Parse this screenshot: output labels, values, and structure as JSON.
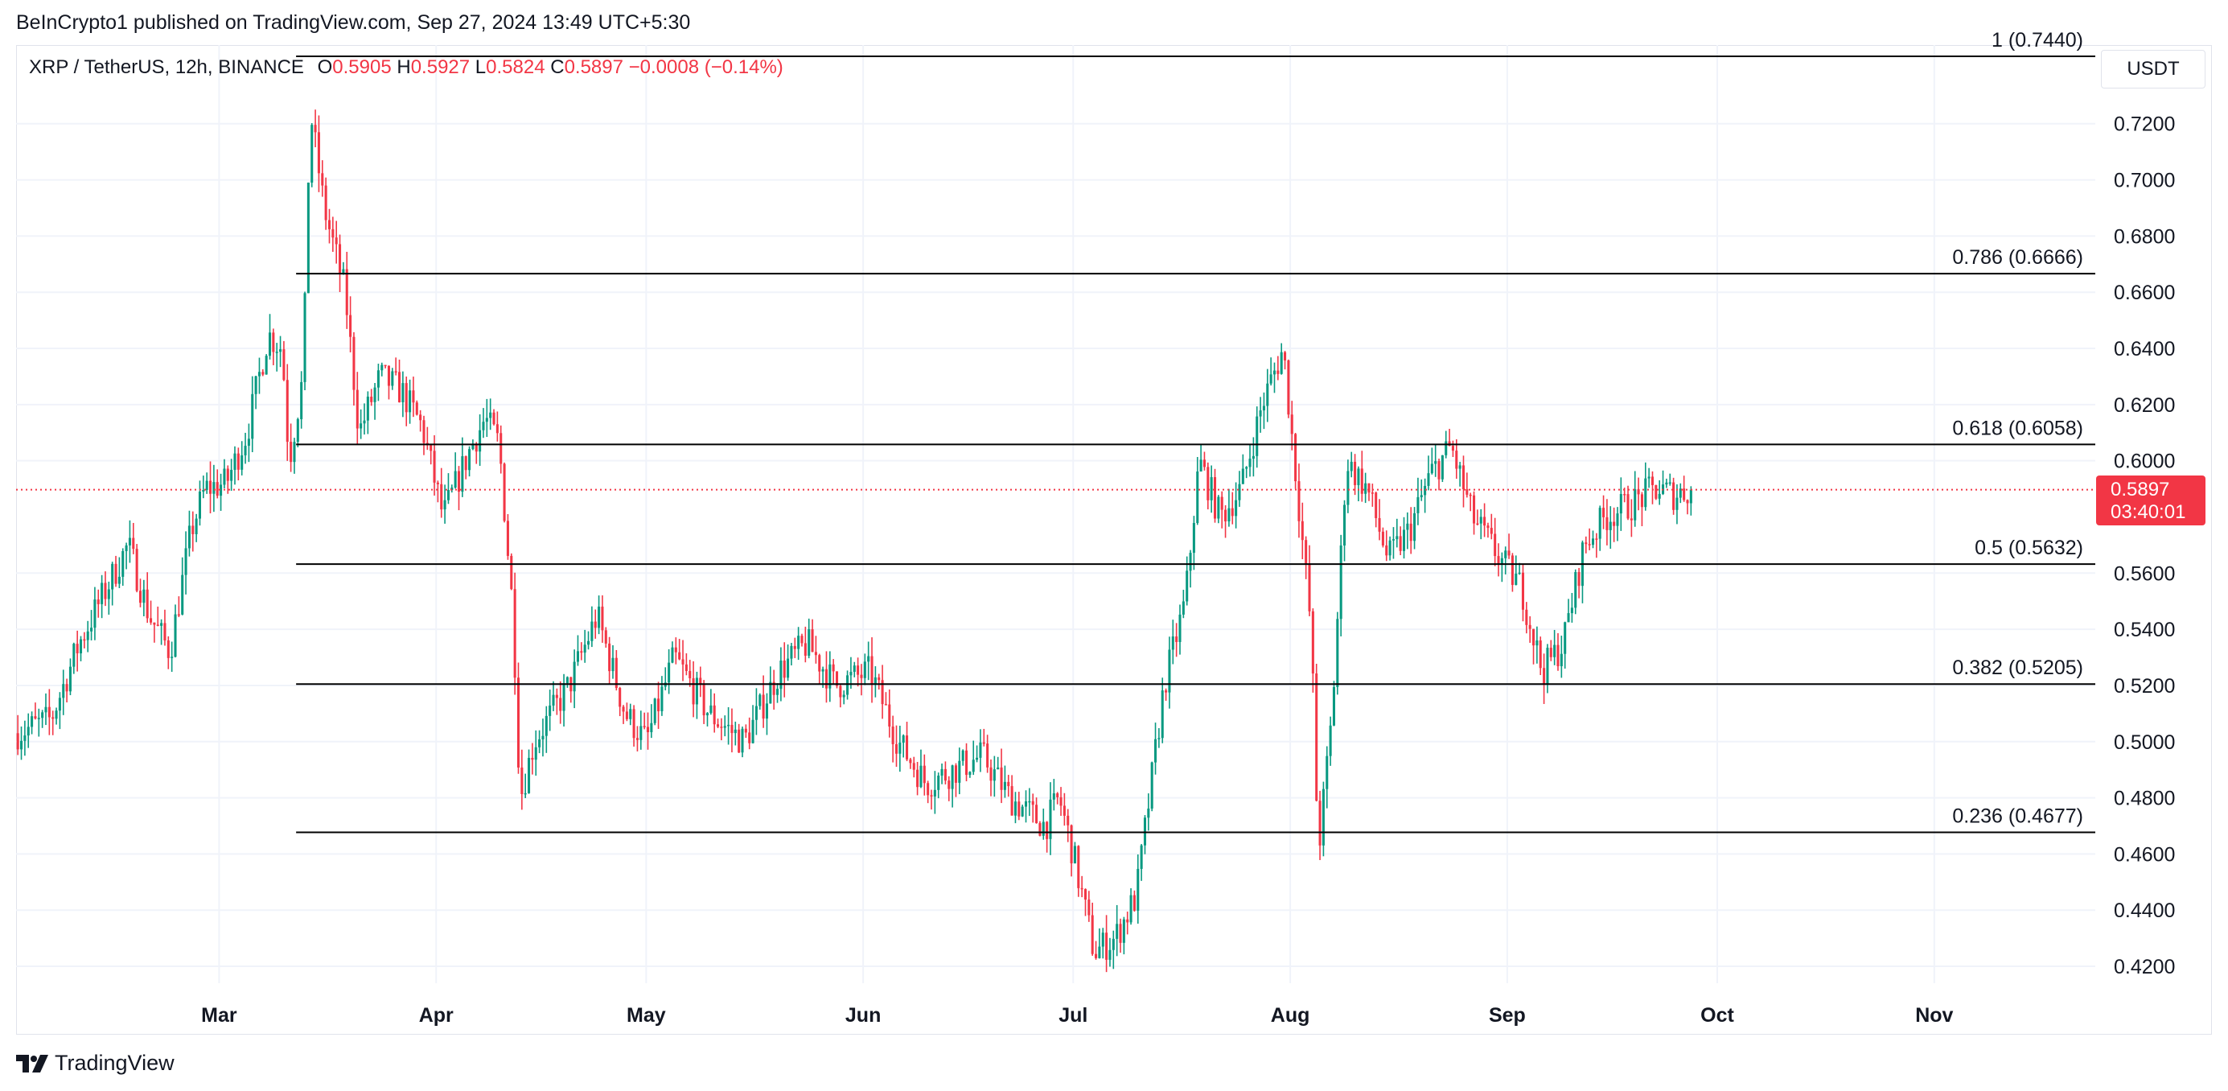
{
  "publisher": "BeInCrypto1 published on TradingView.com, Sep 27, 2024 13:49 UTC+5:30",
  "legend": {
    "symbol": "XRP / TetherUS, 12h, BINANCE",
    "o_label": "O",
    "o_value": "0.5905",
    "h_label": "H",
    "h_value": "0.5927",
    "l_label": "L",
    "l_value": "0.5824",
    "c_label": "C",
    "c_value": "0.5897",
    "change": "−0.0008 (−0.14%)"
  },
  "currency": "USDT",
  "price_badge": {
    "price": "0.5897",
    "countdown": "03:40:01"
  },
  "footer": {
    "brand": "TradingView"
  },
  "colors": {
    "up": "#089981",
    "down": "#f23645",
    "grid": "#f0f3fa",
    "fib_line": "#000000",
    "price_line": "#f23645"
  },
  "chart_data": {
    "type": "candlestick",
    "symbol": "XRP/USDT",
    "interval": "12h",
    "exchange": "BINANCE",
    "ylim": [
      0.414,
      0.748
    ],
    "y_ticks": [
      "0.7200",
      "0.7000",
      "0.6800",
      "0.6600",
      "0.6400",
      "0.6200",
      "0.6000",
      "0.5600",
      "0.5400",
      "0.5200",
      "0.5000",
      "0.4800",
      "0.4600",
      "0.4400",
      "0.4200"
    ],
    "x_ticks": [
      {
        "label": "Mar",
        "date": "2024-03-01"
      },
      {
        "label": "Apr",
        "date": "2024-04-01"
      },
      {
        "label": "May",
        "date": "2024-05-01"
      },
      {
        "label": "Jun",
        "date": "2024-06-01"
      },
      {
        "label": "Jul",
        "date": "2024-07-01"
      },
      {
        "label": "Aug",
        "date": "2024-08-01"
      },
      {
        "label": "Sep",
        "date": "2024-09-01"
      },
      {
        "label": "Oct",
        "date": "2024-10-01"
      },
      {
        "label": "Nov",
        "date": "2024-11-01"
      }
    ],
    "x_range": [
      "2024-02-01",
      "2024-11-24"
    ],
    "current_price": 0.5897,
    "fib_levels": [
      {
        "label": "1 (0.7440)",
        "value": 0.744,
        "start": "2024-03-12"
      },
      {
        "label": "0.786 (0.6666)",
        "value": 0.6666,
        "start": "2024-03-12"
      },
      {
        "label": "0.618 (0.6058)",
        "value": 0.6058,
        "start": "2024-03-12"
      },
      {
        "label": "0.5 (0.5632)",
        "value": 0.5632,
        "start": "2024-03-12"
      },
      {
        "label": "0.382 (0.5205)",
        "value": 0.5205,
        "start": "2024-03-12"
      },
      {
        "label": "0.236 (0.4677)",
        "value": 0.4677,
        "start": "2024-03-12"
      }
    ],
    "path_anchors": [
      [
        "2024-02-01",
        0.503
      ],
      [
        "2024-02-06",
        0.508
      ],
      [
        "2024-02-10",
        0.535
      ],
      [
        "2024-02-14",
        0.555
      ],
      [
        "2024-02-17",
        0.57
      ],
      [
        "2024-02-20",
        0.545
      ],
      [
        "2024-02-23",
        0.532
      ],
      [
        "2024-02-26",
        0.575
      ],
      [
        "2024-02-28",
        0.59
      ],
      [
        "2024-03-02",
        0.592
      ],
      [
        "2024-03-05",
        0.61
      ],
      [
        "2024-03-08",
        0.645
      ],
      [
        "2024-03-10",
        0.64
      ],
      [
        "2024-03-11",
        0.6
      ],
      [
        "2024-03-13",
        0.63
      ],
      [
        "2024-03-14",
        0.725
      ],
      [
        "2024-03-16",
        0.69
      ],
      [
        "2024-03-19",
        0.66
      ],
      [
        "2024-03-21",
        0.61
      ],
      [
        "2024-03-24",
        0.63
      ],
      [
        "2024-03-27",
        0.625
      ],
      [
        "2024-03-30",
        0.612
      ],
      [
        "2024-04-02",
        0.58
      ],
      [
        "2024-04-06",
        0.605
      ],
      [
        "2024-04-08",
        0.615
      ],
      [
        "2024-04-10",
        0.606
      ],
      [
        "2024-04-12",
        0.545
      ],
      [
        "2024-04-13",
        0.48
      ],
      [
        "2024-04-15",
        0.5
      ],
      [
        "2024-04-20",
        0.52
      ],
      [
        "2024-04-24",
        0.545
      ],
      [
        "2024-04-28",
        0.51
      ],
      [
        "2024-05-01",
        0.5
      ],
      [
        "2024-05-05",
        0.53
      ],
      [
        "2024-05-10",
        0.51
      ],
      [
        "2024-05-15",
        0.5
      ],
      [
        "2024-05-20",
        0.525
      ],
      [
        "2024-05-24",
        0.535
      ],
      [
        "2024-05-28",
        0.52
      ],
      [
        "2024-06-02",
        0.525
      ],
      [
        "2024-06-06",
        0.5
      ],
      [
        "2024-06-10",
        0.485
      ],
      [
        "2024-06-14",
        0.49
      ],
      [
        "2024-06-18",
        0.495
      ],
      [
        "2024-06-22",
        0.48
      ],
      [
        "2024-06-27",
        0.47
      ],
      [
        "2024-06-29",
        0.48
      ],
      [
        "2024-07-01",
        0.46
      ],
      [
        "2024-07-04",
        0.425
      ],
      [
        "2024-07-07",
        0.43
      ],
      [
        "2024-07-10",
        0.445
      ],
      [
        "2024-07-14",
        0.52
      ],
      [
        "2024-07-17",
        0.55
      ],
      [
        "2024-07-19",
        0.6
      ],
      [
        "2024-07-22",
        0.58
      ],
      [
        "2024-07-25",
        0.59
      ],
      [
        "2024-07-28",
        0.62
      ],
      [
        "2024-07-31",
        0.64
      ],
      [
        "2024-08-02",
        0.59
      ],
      [
        "2024-08-04",
        0.54
      ],
      [
        "2024-08-05",
        0.46
      ],
      [
        "2024-08-07",
        0.51
      ],
      [
        "2024-08-09",
        0.6
      ],
      [
        "2024-08-12",
        0.59
      ],
      [
        "2024-08-15",
        0.565
      ],
      [
        "2024-08-18",
        0.575
      ],
      [
        "2024-08-21",
        0.595
      ],
      [
        "2024-08-24",
        0.605
      ],
      [
        "2024-08-27",
        0.58
      ],
      [
        "2024-08-31",
        0.565
      ],
      [
        "2024-09-03",
        0.555
      ],
      [
        "2024-09-06",
        0.525
      ],
      [
        "2024-09-09",
        0.535
      ],
      [
        "2024-09-12",
        0.57
      ],
      [
        "2024-09-15",
        0.58
      ],
      [
        "2024-09-19",
        0.585
      ],
      [
        "2024-09-22",
        0.59
      ],
      [
        "2024-09-25",
        0.588
      ],
      [
        "2024-09-27",
        0.5897
      ]
    ]
  }
}
